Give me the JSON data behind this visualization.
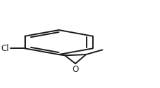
{
  "bg_color": "#ffffff",
  "line_color": "#1a1a1a",
  "line_width": 1.4,
  "font_size": 8.5,
  "cl_label": "Cl",
  "o_label": "O",
  "bx": 0.33,
  "by": 0.52,
  "br": 0.26,
  "aspect": 1.825
}
